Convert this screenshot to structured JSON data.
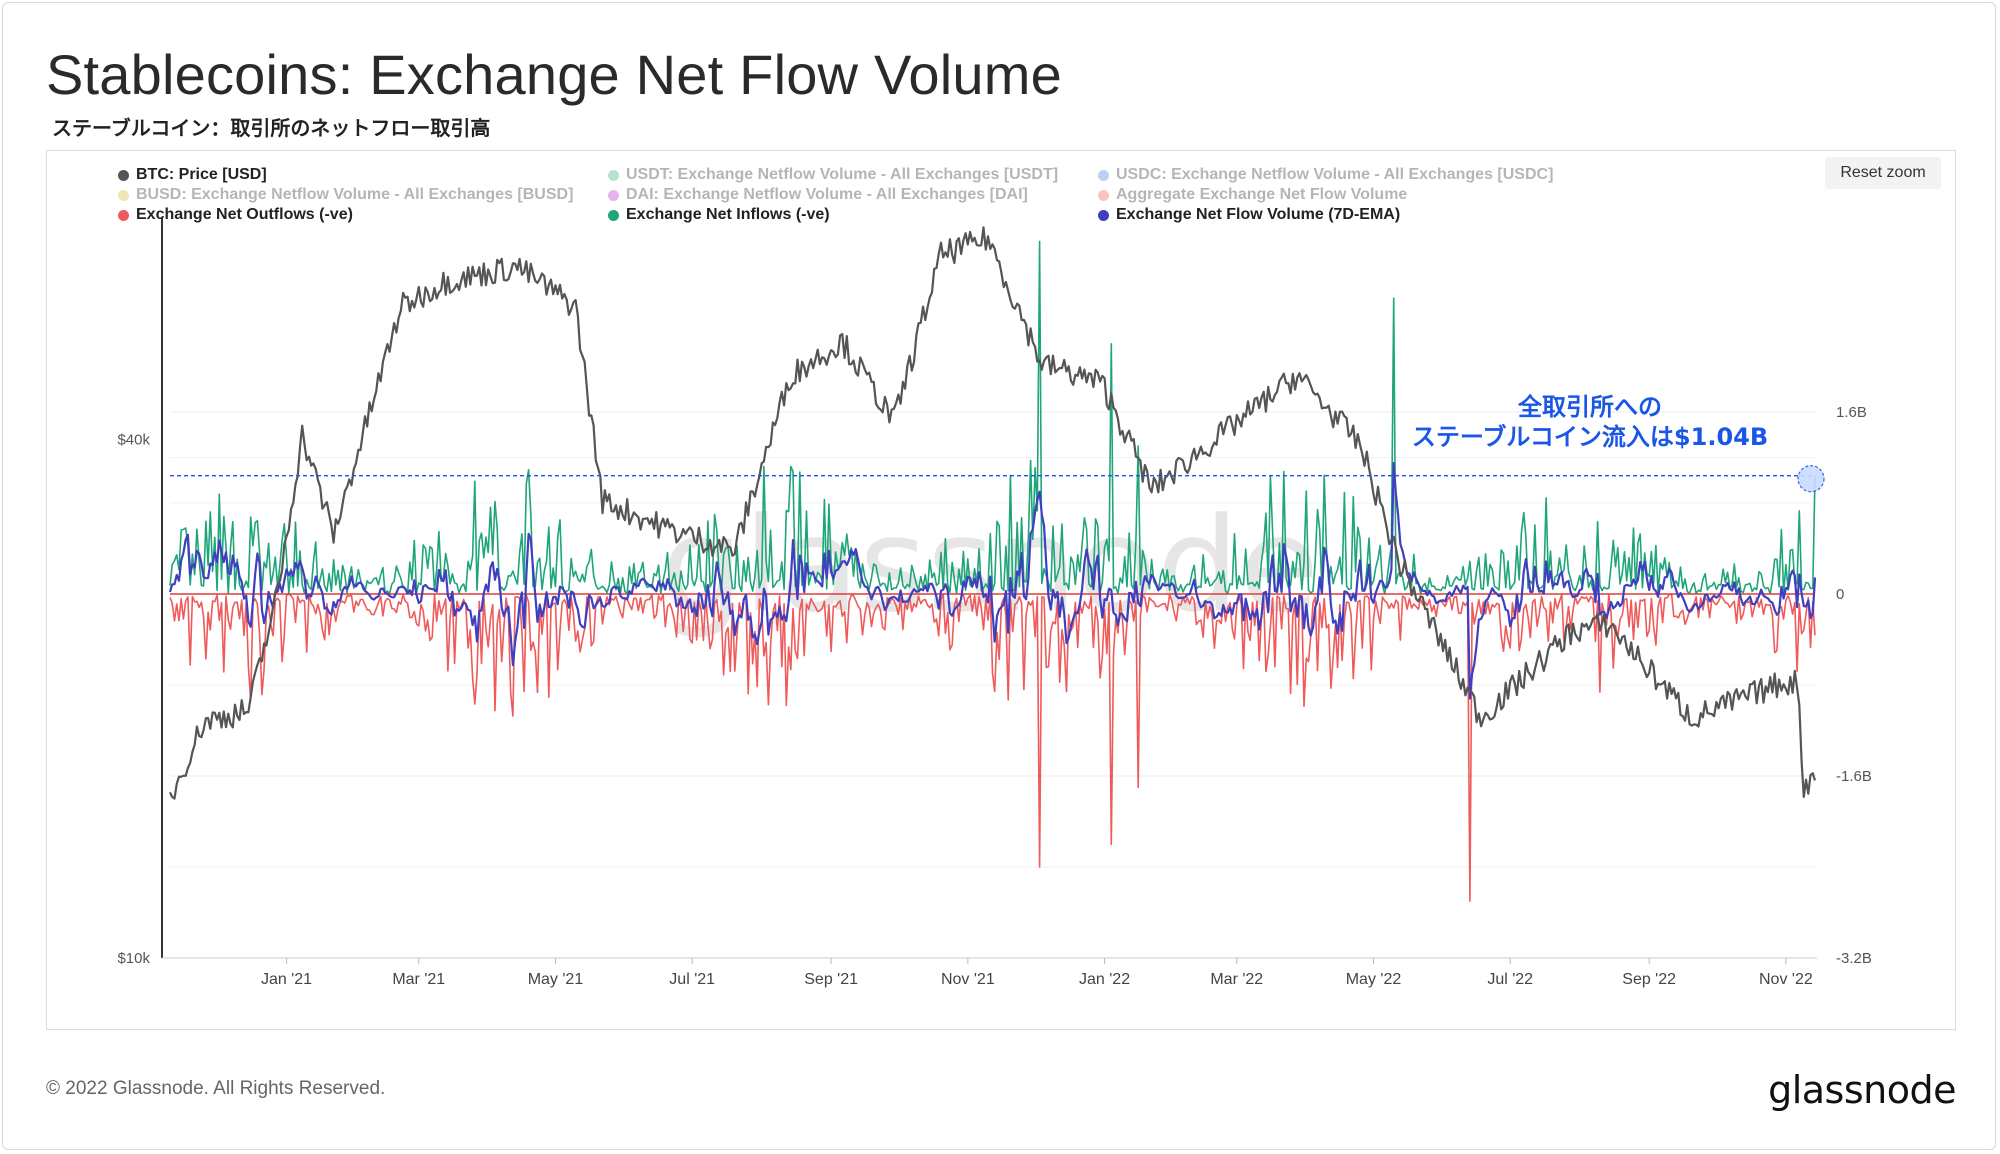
{
  "page": {
    "title": "Stablecoins: Exchange Net Flow Volume",
    "subtitle": "ステーブルコイン：取引所のネットフロー取引高",
    "footer": "© 2022 Glassnode. All Rights Reserved.",
    "brand": "glassnode",
    "reset_zoom": "Reset zoom"
  },
  "annotation": {
    "line1": "全取引所への",
    "line2": "ステーブルコイン流入は$1.04B",
    "value": 1.04,
    "color": "#1a56e8"
  },
  "legend": [
    {
      "label": "BTC: Price [USD]",
      "color": "#555555",
      "active": true
    },
    {
      "label": "USDT: Exchange Netflow Volume - All Exchanges [USDT]",
      "color": "#22a87a",
      "active": false
    },
    {
      "label": "USDC: Exchange Netflow Volume - All Exchanges [USDC]",
      "color": "#3b6fe6",
      "active": false
    },
    {
      "label": "BUSD: Exchange Netflow Volume - All Exchanges [BUSD]",
      "color": "#c9b21a",
      "active": false
    },
    {
      "label": "DAI: Exchange Netflow Volume - All Exchanges [DAI]",
      "color": "#b51fc4",
      "active": false
    },
    {
      "label": "Aggregate Exchange Net Flow Volume",
      "color": "#ef4f4f",
      "active": false
    },
    {
      "label": "Exchange Net Outflows (-ve)",
      "color": "#ef5a5a",
      "active": true
    },
    {
      "label": "Exchange Net Inflows (-ve)",
      "color": "#1fa57a",
      "active": true
    },
    {
      "label": "Exchange Net Flow Volume (7D-EMA)",
      "color": "#3f3fbf",
      "active": true
    }
  ],
  "chart_data": {
    "type": "line",
    "title": "Stablecoins: Exchange Net Flow Volume",
    "x_ticks": [
      "Jan '21",
      "Mar '21",
      "May '21",
      "Jul '21",
      "Sep '21",
      "Nov '21",
      "Jan '22",
      "Mar '22",
      "May '22",
      "Jul '22",
      "Sep '22",
      "Nov '22"
    ],
    "x_range": [
      "Nov '20",
      "Nov '22"
    ],
    "left_axis": {
      "scale": "log",
      "ticks": [
        "$10k",
        "$40k"
      ],
      "tick_values": [
        10000,
        40000
      ],
      "range": [
        10000,
        70000
      ]
    },
    "right_axis": {
      "ticks": [
        "1.6B",
        "0",
        "-1.6B",
        "-3.2B"
      ],
      "tick_values": [
        1.6,
        0,
        -1.6,
        -3.2
      ],
      "range": [
        -3.2,
        3.2
      ],
      "unit": "B USD"
    },
    "btc_price_keypoints": [
      {
        "date": "2020-11-10",
        "value": 15300
      },
      {
        "date": "2020-11-25",
        "value": 18800
      },
      {
        "date": "2020-12-15",
        "value": 19400
      },
      {
        "date": "2020-12-28",
        "value": 26500
      },
      {
        "date": "2021-01-08",
        "value": 40500
      },
      {
        "date": "2021-01-22",
        "value": 31000
      },
      {
        "date": "2021-02-21",
        "value": 57000
      },
      {
        "date": "2021-03-13",
        "value": 61000
      },
      {
        "date": "2021-04-14",
        "value": 63500
      },
      {
        "date": "2021-05-10",
        "value": 57000
      },
      {
        "date": "2021-05-22",
        "value": 34000
      },
      {
        "date": "2021-06-20",
        "value": 31500
      },
      {
        "date": "2021-07-20",
        "value": 29800
      },
      {
        "date": "2021-08-14",
        "value": 47500
      },
      {
        "date": "2021-09-06",
        "value": 52000
      },
      {
        "date": "2021-09-29",
        "value": 42000
      },
      {
        "date": "2021-10-20",
        "value": 65500
      },
      {
        "date": "2021-11-10",
        "value": 68500
      },
      {
        "date": "2021-12-04",
        "value": 49000
      },
      {
        "date": "2021-12-31",
        "value": 46500
      },
      {
        "date": "2022-01-22",
        "value": 35000
      },
      {
        "date": "2022-03-28",
        "value": 47500
      },
      {
        "date": "2022-04-25",
        "value": 39500
      },
      {
        "date": "2022-05-12",
        "value": 29000
      },
      {
        "date": "2022-06-18",
        "value": 19000
      },
      {
        "date": "2022-07-29",
        "value": 24000
      },
      {
        "date": "2022-08-14",
        "value": 24400
      },
      {
        "date": "2022-09-20",
        "value": 19000
      },
      {
        "date": "2022-10-29",
        "value": 20800
      },
      {
        "date": "2022-11-06",
        "value": 21000
      },
      {
        "date": "2022-11-09",
        "value": 15800
      },
      {
        "date": "2022-11-14",
        "value": 16400
      }
    ],
    "notable_flows_B": [
      {
        "date": "2021-12-03",
        "inflow": 3.1,
        "outflow": -2.4
      },
      {
        "date": "2022-01-04",
        "inflow": 2.2,
        "outflow": -2.2
      },
      {
        "date": "2022-01-16",
        "inflow": 1.3,
        "outflow": -1.7
      },
      {
        "date": "2022-05-10",
        "inflow": 2.6
      },
      {
        "date": "2022-06-13",
        "outflow": -2.7
      },
      {
        "date": "2022-11-14",
        "inflow": 1.04
      }
    ],
    "baseline_netflow_B": 0
  }
}
